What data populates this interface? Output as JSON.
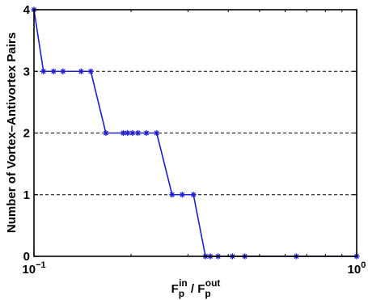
{
  "chart_data": {
    "type": "line",
    "xscale": "log",
    "xlim": [
      0.1,
      1
    ],
    "ylim": [
      0,
      4
    ],
    "xlabel": {
      "main": "F",
      "sub1": "p",
      "sup1": "in",
      "sep": " / F",
      "sub2": "p",
      "sup2": "out"
    },
    "ylabel": "Number of Vortex–Antivortex Pairs",
    "x_ticks": [
      {
        "value": 0.1,
        "base": "10",
        "exp": "−1"
      },
      {
        "value": 1,
        "base": "10",
        "exp": "0"
      }
    ],
    "y_ticks": [
      {
        "value": 0,
        "label": "0"
      },
      {
        "value": 1,
        "label": "1"
      },
      {
        "value": 2,
        "label": "2"
      },
      {
        "value": 3,
        "label": "3"
      },
      {
        "value": 4,
        "label": "4"
      }
    ],
    "grid": {
      "axis": "y",
      "style": "dashed",
      "at": [
        1,
        2,
        3
      ]
    },
    "colors": {
      "line": "#1f1fd0",
      "marker": "#1f1fd0",
      "axis": "#000000",
      "grid": "#000000"
    },
    "marker": "asterisk",
    "series": [
      {
        "x": [
          0.1,
          0.107,
          0.115,
          0.123,
          0.14,
          0.15,
          0.167,
          0.189,
          0.195,
          0.202,
          0.21,
          0.223,
          0.24,
          0.268,
          0.288,
          0.312,
          0.34,
          0.352,
          0.372,
          0.412,
          0.45,
          0.65,
          1.0
        ],
        "y": [
          4,
          3,
          3,
          3,
          3,
          3,
          2,
          2,
          2,
          2,
          2,
          2,
          2,
          1,
          1,
          1,
          0,
          0,
          0,
          0,
          0,
          0,
          0
        ]
      }
    ]
  }
}
